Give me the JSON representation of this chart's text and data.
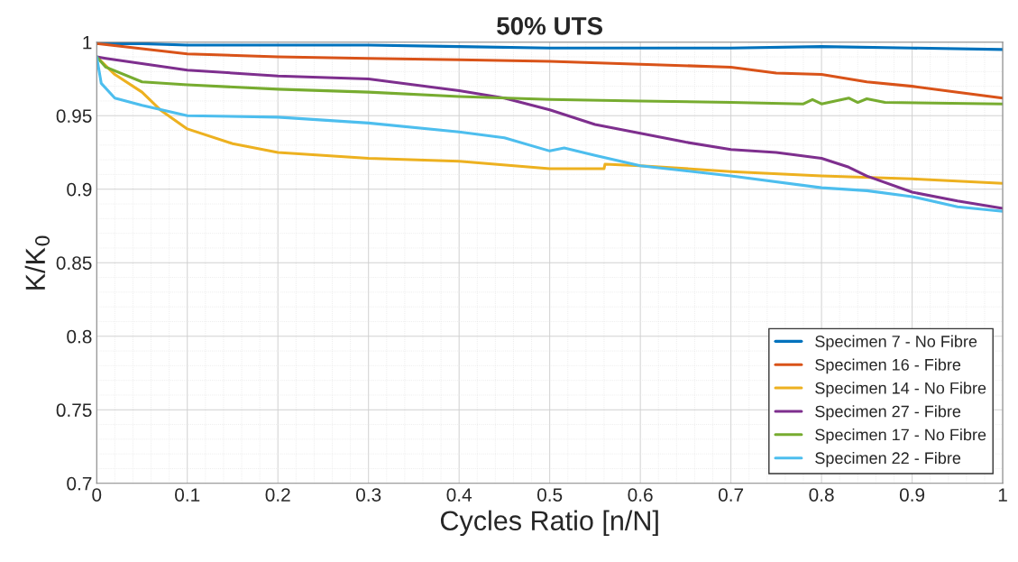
{
  "chart_data": {
    "type": "line",
    "title": "50% UTS",
    "xlabel": "Cycles Ratio [n/N]",
    "ylabel": "K/K$_{0}$",
    "xlim": [
      0,
      1
    ],
    "ylim": [
      0.7,
      1
    ],
    "xticks": [
      0,
      0.1,
      0.2,
      0.3,
      0.4,
      0.5,
      0.6,
      0.7,
      0.8,
      0.9,
      1
    ],
    "yticks": [
      0.7,
      0.75,
      0.8,
      0.85,
      0.9,
      0.95,
      1
    ],
    "grid": true,
    "legend": "bottom right",
    "line_style": "solid",
    "marker": "none",
    "series": [
      {
        "name": "Specimen 7 - No Fibre",
        "color": "#0072bd",
        "x": [
          0,
          0.05,
          0.1,
          0.2,
          0.3,
          0.4,
          0.5,
          0.6,
          0.7,
          0.8,
          0.9,
          1
        ],
        "values": [
          0.999,
          0.999,
          0.998,
          0.998,
          0.998,
          0.997,
          0.996,
          0.996,
          0.996,
          0.997,
          0.996,
          0.995
        ]
      },
      {
        "name": "Specimen 16 - Fibre",
        "color": "#d95319",
        "x": [
          0,
          0.1,
          0.2,
          0.3,
          0.4,
          0.5,
          0.6,
          0.7,
          0.75,
          0.8,
          0.85,
          0.9,
          0.95,
          1
        ],
        "values": [
          0.999,
          0.992,
          0.99,
          0.989,
          0.988,
          0.987,
          0.985,
          0.983,
          0.979,
          0.978,
          0.973,
          0.97,
          0.966,
          0.962
        ]
      },
      {
        "name": "Specimen 14 - No Fibre",
        "color": "#edb120",
        "x": [
          0,
          0.02,
          0.05,
          0.07,
          0.1,
          0.15,
          0.2,
          0.3,
          0.4,
          0.5,
          0.56,
          0.561,
          0.6,
          0.7,
          0.8,
          0.9,
          1
        ],
        "values": [
          0.99,
          0.978,
          0.966,
          0.954,
          0.941,
          0.931,
          0.925,
          0.921,
          0.919,
          0.914,
          0.914,
          0.917,
          0.916,
          0.912,
          0.909,
          0.907,
          0.904
        ]
      },
      {
        "name": "Specimen 27 - Fibre",
        "color": "#7e2f8e",
        "x": [
          0,
          0.01,
          0.1,
          0.2,
          0.3,
          0.4,
          0.45,
          0.5,
          0.55,
          0.6,
          0.65,
          0.7,
          0.75,
          0.8,
          0.83,
          0.85,
          0.9,
          0.95,
          1
        ],
        "values": [
          0.99,
          0.989,
          0.981,
          0.977,
          0.975,
          0.967,
          0.962,
          0.954,
          0.944,
          0.938,
          0.932,
          0.927,
          0.925,
          0.921,
          0.915,
          0.909,
          0.898,
          0.892,
          0.887
        ]
      },
      {
        "name": "Specimen 17 - No Fibre",
        "color": "#77ac30",
        "x": [
          0,
          0.01,
          0.05,
          0.1,
          0.2,
          0.3,
          0.4,
          0.5,
          0.6,
          0.7,
          0.78,
          0.79,
          0.8,
          0.83,
          0.84,
          0.85,
          0.87,
          1
        ],
        "values": [
          0.99,
          0.983,
          0.973,
          0.971,
          0.968,
          0.966,
          0.963,
          0.961,
          0.96,
          0.959,
          0.958,
          0.961,
          0.958,
          0.962,
          0.959,
          0.9615,
          0.959,
          0.958
        ]
      },
      {
        "name": "Specimen 22 - Fibre",
        "color": "#4dbeee",
        "x": [
          0,
          0.005,
          0.02,
          0.05,
          0.1,
          0.2,
          0.3,
          0.4,
          0.45,
          0.5,
          0.516,
          0.55,
          0.6,
          0.7,
          0.8,
          0.85,
          0.9,
          0.95,
          1
        ],
        "values": [
          0.99,
          0.972,
          0.962,
          0.957,
          0.95,
          0.949,
          0.945,
          0.939,
          0.935,
          0.926,
          0.928,
          0.923,
          0.916,
          0.909,
          0.901,
          0.899,
          0.895,
          0.888,
          0.885
        ]
      }
    ]
  }
}
